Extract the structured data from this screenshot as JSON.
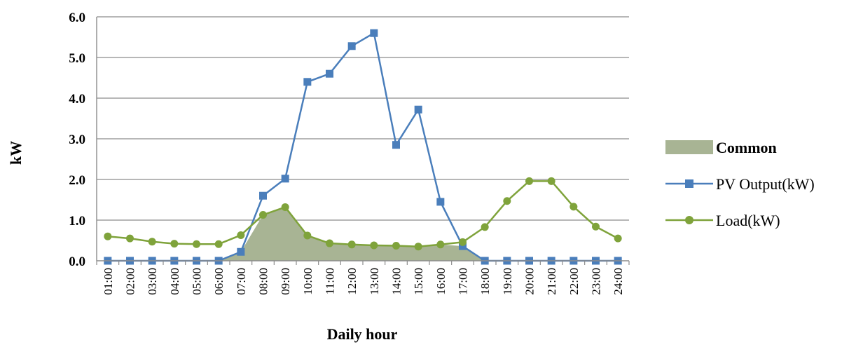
{
  "chart_data": {
    "type": "line",
    "title": "",
    "xlabel": "Daily hour",
    "ylabel": "kW",
    "ylim": [
      0,
      6
    ],
    "yticks": [
      "0.0",
      "1.0",
      "2.0",
      "3.0",
      "4.0",
      "5.0",
      "6.0"
    ],
    "grid": true,
    "legend_position": "right",
    "categories": [
      "01:00",
      "02:00",
      "03:00",
      "04:00",
      "05:00",
      "06:00",
      "07:00",
      "08:00",
      "09:00",
      "10:00",
      "11:00",
      "12:00",
      "13:00",
      "14:00",
      "15:00",
      "16:00",
      "17:00",
      "18:00",
      "19:00",
      "20:00",
      "21:00",
      "22:00",
      "23:00",
      "24:00"
    ],
    "series": [
      {
        "name": "Common",
        "kind": "area",
        "color": "#a8b494",
        "values": [
          0,
          0,
          0,
          0,
          0,
          0,
          0.22,
          1.13,
          1.32,
          0.62,
          0.43,
          0.4,
          0.38,
          0.37,
          0.35,
          0.4,
          0.36,
          0,
          0,
          0,
          0,
          0,
          0,
          0
        ]
      },
      {
        "name": "PV Output(kW)",
        "kind": "line",
        "marker": "square",
        "color": "#4a7ebb",
        "values": [
          0,
          0,
          0,
          0,
          0,
          0,
          0.22,
          1.6,
          2.02,
          4.4,
          4.6,
          5.28,
          5.6,
          2.85,
          3.72,
          1.45,
          0.36,
          0,
          0,
          0,
          0,
          0,
          0,
          0
        ]
      },
      {
        "name": "Load(kW)",
        "kind": "line",
        "marker": "circle",
        "color": "#7fa33b",
        "values": [
          0.6,
          0.55,
          0.47,
          0.42,
          0.41,
          0.41,
          0.63,
          1.13,
          1.32,
          0.62,
          0.43,
          0.4,
          0.38,
          0.37,
          0.35,
          0.4,
          0.46,
          0.83,
          1.47,
          1.96,
          1.96,
          1.33,
          0.84,
          0.55
        ]
      }
    ]
  }
}
